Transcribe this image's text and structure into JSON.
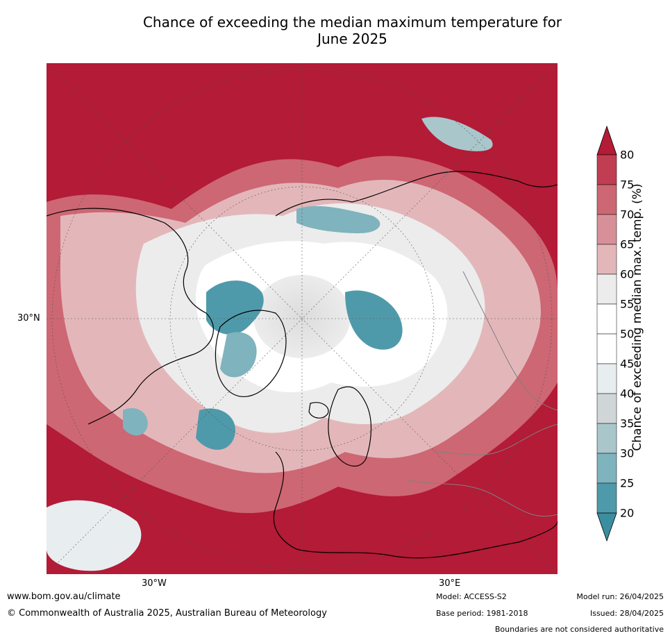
{
  "title": {
    "line1": "Chance of exceeding the median maximum temperature for",
    "line2": "June 2025"
  },
  "axes": {
    "lat_label": "30°N",
    "lon_label_left": "30°W",
    "lon_label_right": "30°E"
  },
  "colorbar": {
    "label": "Chance of exceeding median max. temp. (%)",
    "ticks": [
      "80",
      "75",
      "70",
      "65",
      "60",
      "55",
      "50",
      "45",
      "40",
      "35",
      "30",
      "25",
      "20"
    ],
    "colors": [
      "#b31b36",
      "#c13d51",
      "#cd6773",
      "#d89098",
      "#e3b7ba",
      "#ececec",
      "#ffffff",
      "#ffffff",
      "#e8edf0",
      "#d0d6d8",
      "#a9c6cb",
      "#7fb3bd",
      "#4f9aaa",
      "#3a8e9f"
    ],
    "extend": "both"
  },
  "footer": {
    "website": "www.bom.gov.au/climate",
    "copyright": "© Commonwealth of Australia 2025, Australian Bureau of Meteorology",
    "model": "Model: ACCESS-S2",
    "base_period": "Base period: 1981-2018",
    "model_run": "Model run: 26/04/2025",
    "issued": "Issued: 28/04/2025",
    "disclaimer": "Boundaries are not considered authoritative"
  }
}
